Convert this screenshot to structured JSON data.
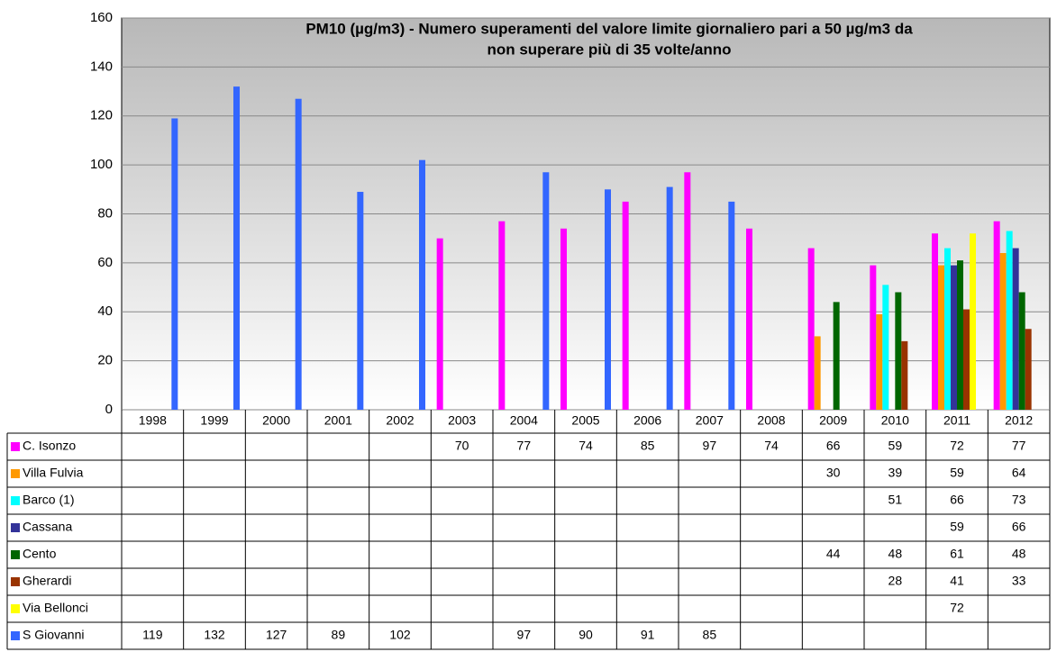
{
  "chart_data": {
    "type": "bar",
    "title": [
      "PM10 (µg/m3) - Numero superamenti del valore limite giornaliero pari a 50  µg/m3 da",
      "non superare più di 35 volte/anno"
    ],
    "categories": [
      "1998",
      "1999",
      "2000",
      "2001",
      "2002",
      "2003",
      "2004",
      "2005",
      "2006",
      "2007",
      "2008",
      "2009",
      "2010",
      "2011",
      "2012"
    ],
    "series": [
      {
        "name": "C. Isonzo",
        "color": "#ff00ff",
        "values": [
          null,
          null,
          null,
          null,
          null,
          70,
          77,
          74,
          85,
          97,
          74,
          66,
          59,
          72,
          77
        ]
      },
      {
        "name": "Villa Fulvia",
        "color": "#ff9900",
        "values": [
          null,
          null,
          null,
          null,
          null,
          null,
          null,
          null,
          null,
          null,
          null,
          30,
          39,
          59,
          64
        ]
      },
      {
        "name": "Barco (1)",
        "color": "#00ffff",
        "values": [
          null,
          null,
          null,
          null,
          null,
          null,
          null,
          null,
          null,
          null,
          null,
          null,
          51,
          66,
          73
        ]
      },
      {
        "name": "Cassana",
        "color": "#333399",
        "values": [
          null,
          null,
          null,
          null,
          null,
          null,
          null,
          null,
          null,
          null,
          null,
          null,
          null,
          59,
          66
        ]
      },
      {
        "name": "Cento",
        "color": "#006600",
        "values": [
          null,
          null,
          null,
          null,
          null,
          null,
          null,
          null,
          null,
          null,
          null,
          44,
          48,
          61,
          48
        ]
      },
      {
        "name": "Gherardi",
        "color": "#993300",
        "values": [
          null,
          null,
          null,
          null,
          null,
          null,
          null,
          null,
          null,
          null,
          null,
          null,
          28,
          41,
          33
        ]
      },
      {
        "name": "Via Bellonci",
        "color": "#ffff00",
        "values": [
          null,
          null,
          null,
          null,
          null,
          null,
          null,
          null,
          null,
          null,
          null,
          null,
          null,
          72,
          null
        ]
      },
      {
        "name": "S Giovanni",
        "color": "#3366ff",
        "values": [
          119,
          132,
          127,
          89,
          102,
          null,
          97,
          90,
          91,
          85,
          null,
          null,
          null,
          null,
          null
        ]
      }
    ],
    "ylim": [
      0,
      160
    ],
    "yticks": [
      0,
      20,
      40,
      60,
      80,
      100,
      120,
      140,
      160
    ],
    "grid": true
  }
}
